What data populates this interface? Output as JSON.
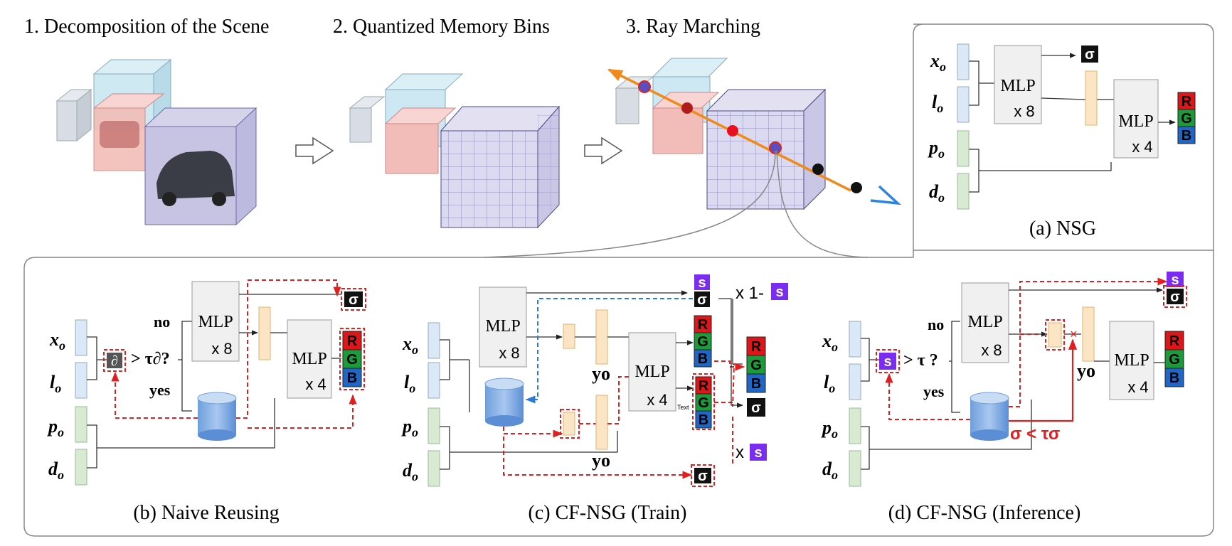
{
  "header": {
    "step1": "1. Decomposition of the Scene",
    "step2": "2. Quantized Memory Bins",
    "step3": "3. Ray Marching"
  },
  "panels": {
    "a": {
      "caption": "(a) NSG",
      "mlp1": "MLP",
      "mlp1_times": "x 8",
      "mlp2": "MLP",
      "mlp2_times": "x 4"
    },
    "b": {
      "caption": "(b) Naive Reusing",
      "no": "no",
      "yes": "yes",
      "partial": "∂",
      "threshold": "> τ∂?",
      "mlp1": "MLP",
      "mlp1_times": "x 8",
      "mlp2": "MLP",
      "mlp2_times": "x 4"
    },
    "c": {
      "caption": "(c) CF-NSG (Train)",
      "mlp1": "MLP",
      "mlp1_times": "x 8",
      "mlp2": "MLP",
      "mlp2_times": "x 4",
      "y_o": "yo",
      "times_one_minus": "x 1-",
      "times": "x",
      "s": "s",
      "tiny_text": "Text"
    },
    "d": {
      "caption": "(d) CF-NSG (Inference)",
      "no": "no",
      "yes": "yes",
      "s": "s",
      "threshold": "> τ ?",
      "mlp1": "MLP",
      "mlp1_times": "x 8",
      "mlp2": "MLP",
      "mlp2_times": "x 4",
      "y_o": "yo",
      "sigma_cond": "σ < τσ"
    }
  },
  "inputs": {
    "x": "x",
    "l": "l",
    "p": "p",
    "d": "d",
    "sub": "o"
  },
  "outputs": {
    "sigma": "σ",
    "r": "R",
    "g": "G",
    "b": "B"
  },
  "colors": {
    "input_blue": "#dbe8f7",
    "input_green": "#d9ead3",
    "feature": "#fbe5c4",
    "feature_stroke": "#e3b36e",
    "red_dash": "#e02020",
    "blue_dash": "#2a7bd6",
    "orange_ray": "#f08a1a",
    "s_purple": "#7a2cf0"
  }
}
